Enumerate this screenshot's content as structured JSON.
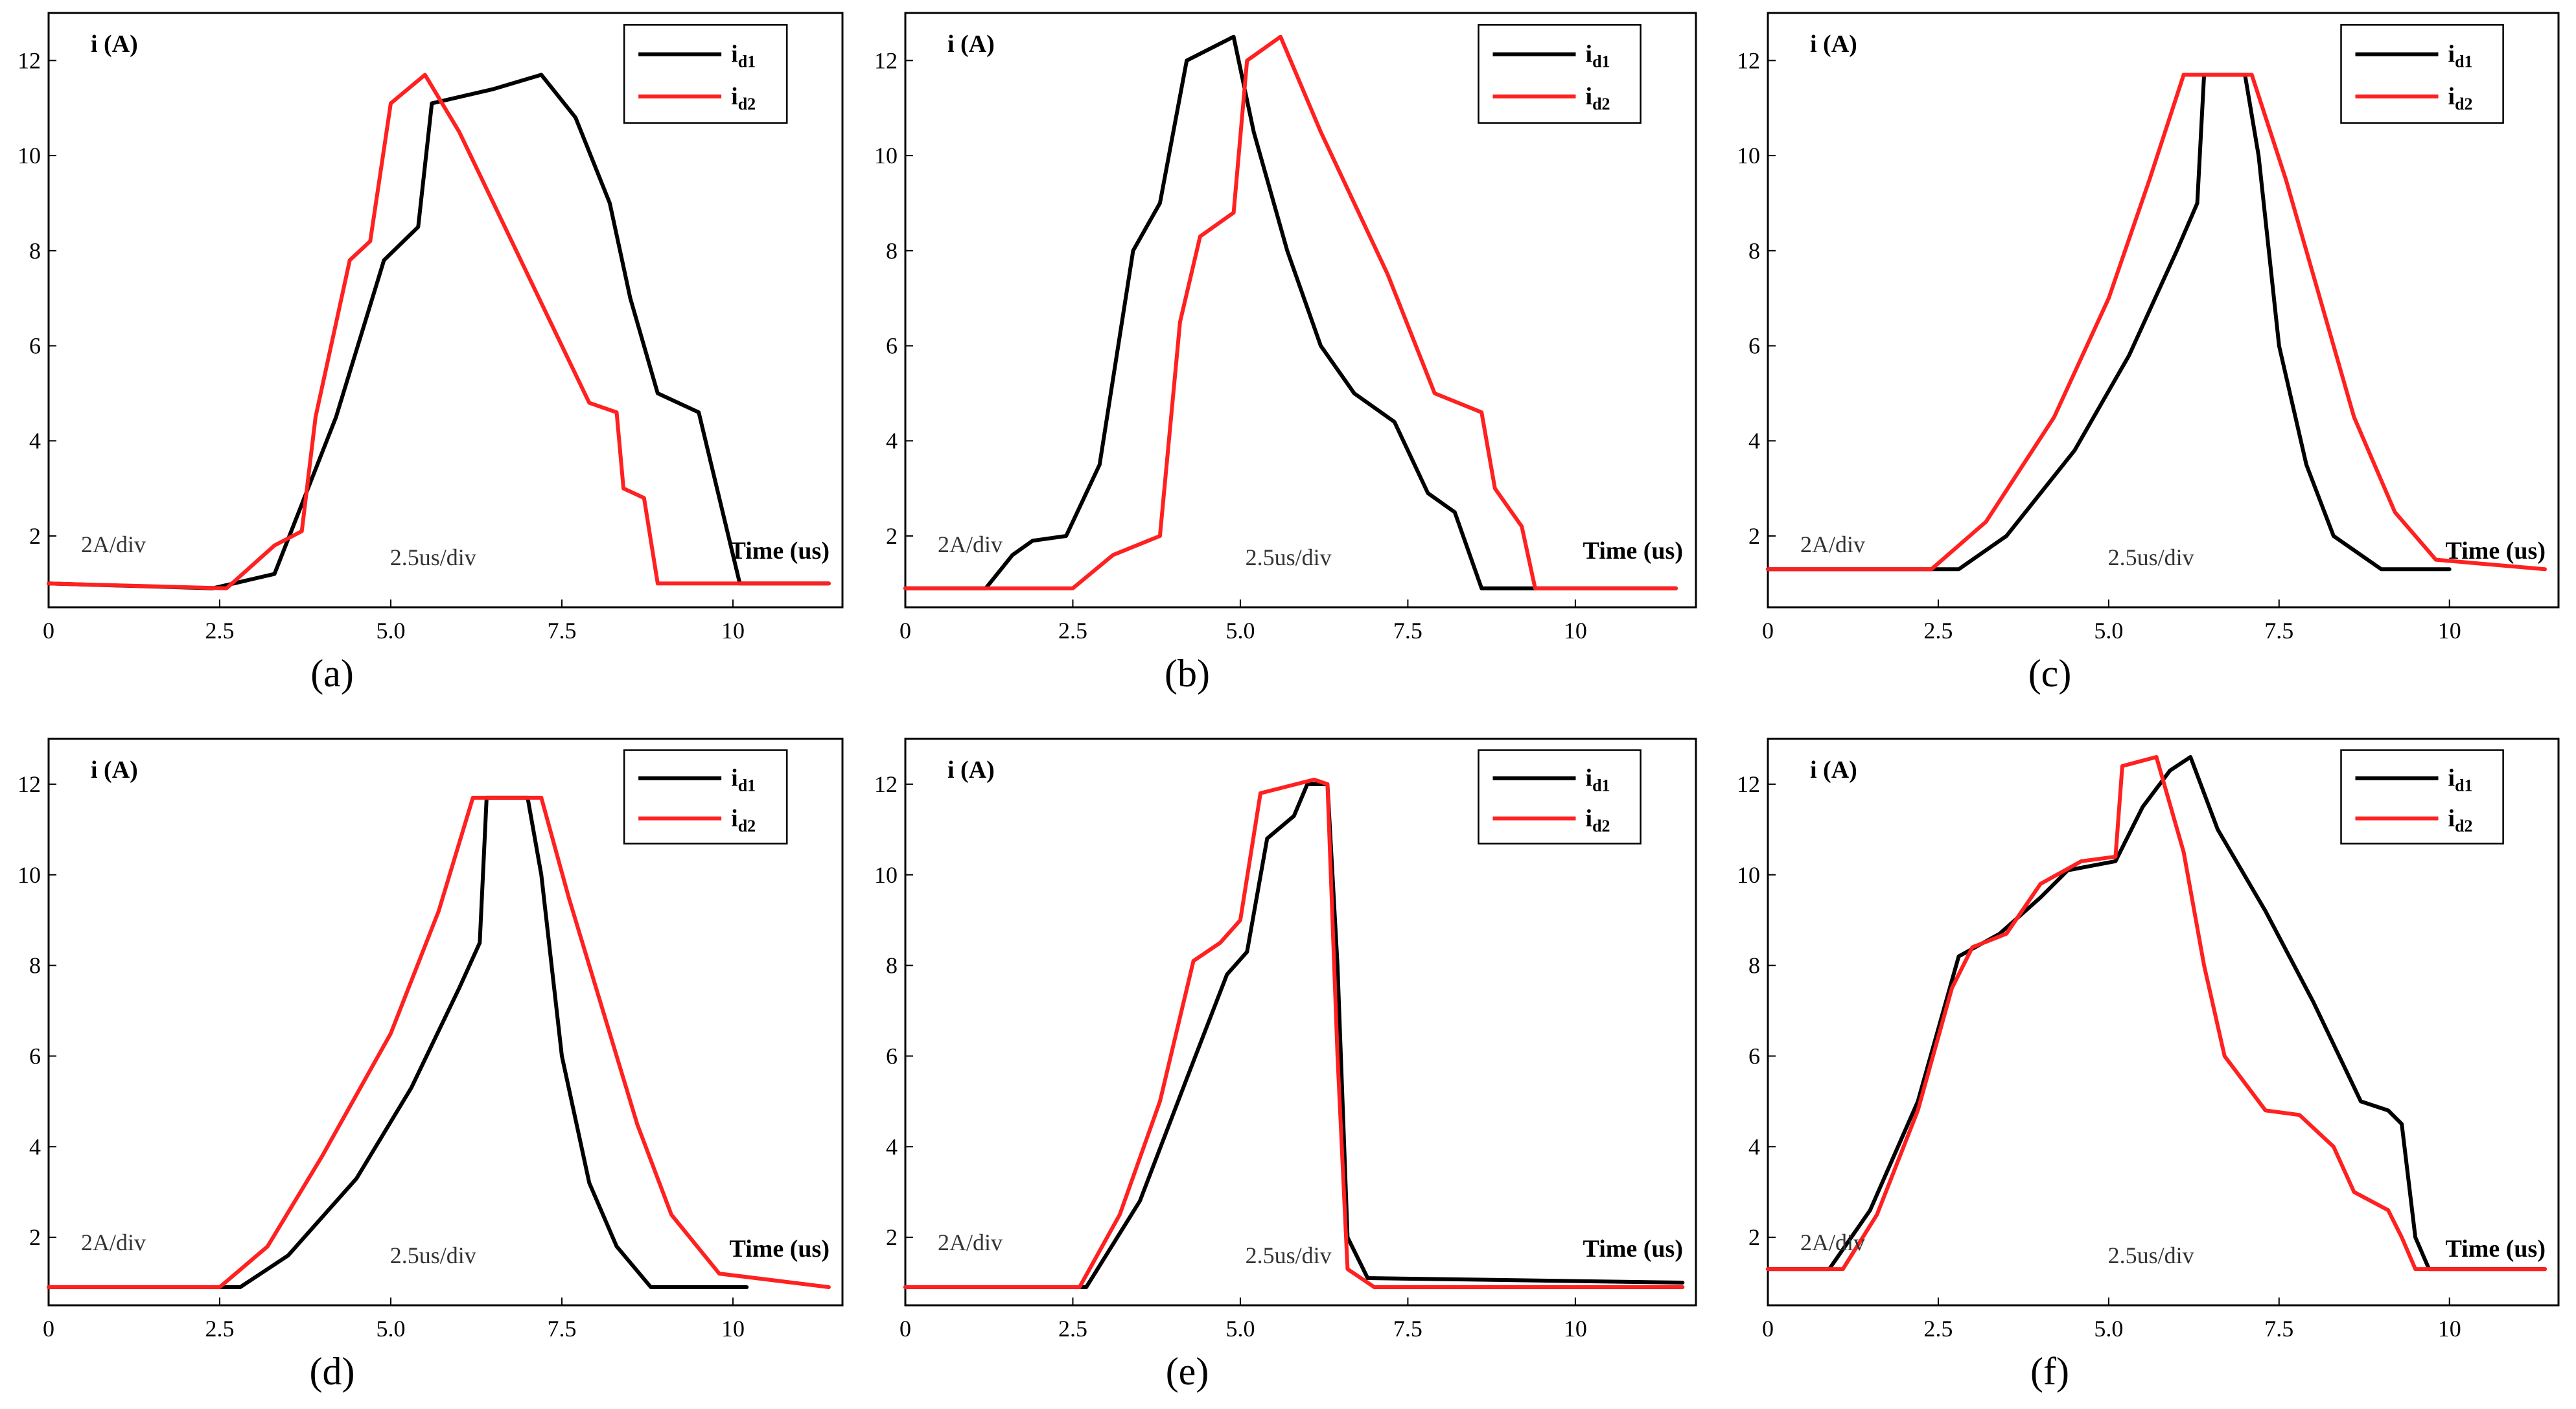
{
  "colors": {
    "id1": "#000000",
    "id2": "#ff2020"
  },
  "chart_data": [
    {
      "type": "line",
      "panel_label": "(a)",
      "ylabel": "i (A)",
      "xlabel": "Time (us)",
      "scale_y": "2A/div",
      "scale_x": "2.5us/div",
      "xlim": [
        0,
        11.6
      ],
      "ylim": [
        0.5,
        13
      ],
      "xticks": [
        0,
        2.5,
        5.0,
        7.5,
        10
      ],
      "xtick_labels": [
        "0",
        "2.5",
        "5.0",
        "7.5",
        "10"
      ],
      "yticks": [
        2,
        4,
        6,
        8,
        10,
        12
      ],
      "ytick_labels": [
        "2",
        "4",
        "6",
        "8",
        "10",
        "12"
      ],
      "series": [
        {
          "name": "id1",
          "points": [
            [
              0,
              1
            ],
            [
              2.4,
              0.9
            ],
            [
              3.3,
              1.2
            ],
            [
              4.2,
              4.5
            ],
            [
              4.9,
              7.8
            ],
            [
              5.4,
              8.5
            ],
            [
              5.6,
              11.1
            ],
            [
              6.5,
              11.4
            ],
            [
              7.2,
              11.7
            ],
            [
              7.7,
              10.8
            ],
            [
              8.2,
              9
            ],
            [
              8.5,
              7
            ],
            [
              8.9,
              5
            ],
            [
              9.5,
              4.6
            ],
            [
              10.1,
              1
            ],
            [
              11.4,
              1
            ]
          ]
        },
        {
          "name": "id2",
          "points": [
            [
              0,
              1
            ],
            [
              2.6,
              0.9
            ],
            [
              3.3,
              1.8
            ],
            [
              3.7,
              2.1
            ],
            [
              3.9,
              4.5
            ],
            [
              4.4,
              7.8
            ],
            [
              4.7,
              8.2
            ],
            [
              5.0,
              11.1
            ],
            [
              5.5,
              11.7
            ],
            [
              6.0,
              10.5
            ],
            [
              7.0,
              7.5
            ],
            [
              7.9,
              4.8
            ],
            [
              8.3,
              4.6
            ],
            [
              8.4,
              3
            ],
            [
              8.7,
              2.8
            ],
            [
              8.9,
              1
            ],
            [
              11.4,
              1
            ]
          ]
        }
      ]
    },
    {
      "type": "line",
      "panel_label": "(b)",
      "ylabel": "i (A)",
      "xlabel": "Time (us)",
      "scale_y": "2A/div",
      "scale_x": "2.5us/div",
      "xlim": [
        0,
        11.8
      ],
      "ylim": [
        0.5,
        13
      ],
      "xticks": [
        0,
        2.5,
        5.0,
        7.5,
        10
      ],
      "xtick_labels": [
        "0",
        "2.5",
        "5.0",
        "7.5",
        "10"
      ],
      "yticks": [
        2,
        4,
        6,
        8,
        10,
        12
      ],
      "ytick_labels": [
        "2",
        "4",
        "6",
        "8",
        "10",
        "12"
      ],
      "series": [
        {
          "name": "id1",
          "points": [
            [
              0,
              0.9
            ],
            [
              1.2,
              0.9
            ],
            [
              1.6,
              1.6
            ],
            [
              1.9,
              1.9
            ],
            [
              2.4,
              2.0
            ],
            [
              2.9,
              3.5
            ],
            [
              3.4,
              8.0
            ],
            [
              3.8,
              9.0
            ],
            [
              4.2,
              12.0
            ],
            [
              4.9,
              12.5
            ],
            [
              5.2,
              10.5
            ],
            [
              5.7,
              8.0
            ],
            [
              6.2,
              6.0
            ],
            [
              6.7,
              5.0
            ],
            [
              7.3,
              4.4
            ],
            [
              7.8,
              2.9
            ],
            [
              8.2,
              2.5
            ],
            [
              8.6,
              0.9
            ],
            [
              11.5,
              0.9
            ]
          ]
        },
        {
          "name": "id2",
          "points": [
            [
              0,
              0.9
            ],
            [
              2.5,
              0.9
            ],
            [
              3.1,
              1.6
            ],
            [
              3.8,
              2.0
            ],
            [
              4.1,
              6.5
            ],
            [
              4.4,
              8.3
            ],
            [
              4.9,
              8.8
            ],
            [
              5.1,
              12.0
            ],
            [
              5.6,
              12.5
            ],
            [
              6.2,
              10.5
            ],
            [
              7.2,
              7.5
            ],
            [
              7.9,
              5.0
            ],
            [
              8.6,
              4.6
            ],
            [
              8.8,
              3.0
            ],
            [
              9.2,
              2.2
            ],
            [
              9.4,
              0.9
            ],
            [
              11.5,
              0.9
            ]
          ]
        }
      ]
    },
    {
      "type": "line",
      "panel_label": "(c)",
      "ylabel": "i (A)",
      "xlabel": "Time (us)",
      "scale_y": "2A/div",
      "scale_x": "2.5us/div",
      "xlim": [
        0,
        11.6
      ],
      "ylim": [
        0.5,
        13
      ],
      "xticks": [
        0,
        2.5,
        5.0,
        7.5,
        10
      ],
      "xtick_labels": [
        "0",
        "2.5",
        "5.0",
        "7.5",
        "10"
      ],
      "yticks": [
        2,
        4,
        6,
        8,
        10,
        12
      ],
      "ytick_labels": [
        "2",
        "4",
        "6",
        "8",
        "10",
        "12"
      ],
      "series": [
        {
          "name": "id1",
          "points": [
            [
              0,
              1.3
            ],
            [
              2.8,
              1.3
            ],
            [
              3.5,
              2.0
            ],
            [
              4.5,
              3.8
            ],
            [
              5.3,
              5.8
            ],
            [
              6.0,
              8.0
            ],
            [
              6.3,
              9.0
            ],
            [
              6.4,
              11.7
            ],
            [
              7.0,
              11.7
            ],
            [
              7.2,
              10.0
            ],
            [
              7.5,
              6.0
            ],
            [
              7.9,
              3.5
            ],
            [
              8.3,
              2.0
            ],
            [
              9.0,
              1.3
            ],
            [
              10.0,
              1.3
            ]
          ]
        },
        {
          "name": "id2",
          "points": [
            [
              0,
              1.3
            ],
            [
              2.4,
              1.3
            ],
            [
              3.2,
              2.3
            ],
            [
              4.2,
              4.5
            ],
            [
              5.0,
              7.0
            ],
            [
              5.6,
              9.5
            ],
            [
              6.1,
              11.7
            ],
            [
              7.1,
              11.7
            ],
            [
              7.6,
              9.5
            ],
            [
              8.1,
              7.0
            ],
            [
              8.6,
              4.5
            ],
            [
              9.2,
              2.5
            ],
            [
              9.8,
              1.5
            ],
            [
              11.4,
              1.3
            ]
          ]
        }
      ]
    },
    {
      "type": "line",
      "panel_label": "(d)",
      "ylabel": "i (A)",
      "xlabel": "Time (us)",
      "scale_y": "2A/div",
      "scale_x": "2.5us/div",
      "xlim": [
        0,
        11.6
      ],
      "ylim": [
        0.5,
        13
      ],
      "xticks": [
        0,
        2.5,
        5.0,
        7.5,
        10
      ],
      "xtick_labels": [
        "0",
        "2.5",
        "5.0",
        "7.5",
        "10"
      ],
      "yticks": [
        2,
        4,
        6,
        8,
        10,
        12
      ],
      "ytick_labels": [
        "2",
        "4",
        "6",
        "8",
        "10",
        "12"
      ],
      "series": [
        {
          "name": "id1",
          "points": [
            [
              0,
              0.9
            ],
            [
              2.8,
              0.9
            ],
            [
              3.5,
              1.6
            ],
            [
              4.5,
              3.3
            ],
            [
              5.3,
              5.3
            ],
            [
              6.0,
              7.5
            ],
            [
              6.3,
              8.5
            ],
            [
              6.4,
              11.7
            ],
            [
              7.0,
              11.7
            ],
            [
              7.2,
              10.0
            ],
            [
              7.5,
              6.0
            ],
            [
              7.9,
              3.2
            ],
            [
              8.3,
              1.8
            ],
            [
              8.8,
              0.9
            ],
            [
              10.2,
              0.9
            ]
          ]
        },
        {
          "name": "id2",
          "points": [
            [
              0,
              0.9
            ],
            [
              2.5,
              0.9
            ],
            [
              3.2,
              1.8
            ],
            [
              4.0,
              3.8
            ],
            [
              5.0,
              6.5
            ],
            [
              5.7,
              9.2
            ],
            [
              6.2,
              11.7
            ],
            [
              7.2,
              11.7
            ],
            [
              7.6,
              9.5
            ],
            [
              8.1,
              7.0
            ],
            [
              8.6,
              4.5
            ],
            [
              9.1,
              2.5
            ],
            [
              9.8,
              1.2
            ],
            [
              11.4,
              0.9
            ]
          ]
        }
      ]
    },
    {
      "type": "line",
      "panel_label": "(e)",
      "ylabel": "i (A)",
      "xlabel": "Time (us)",
      "scale_y": "2A/div",
      "scale_x": "2.5us/div",
      "xlim": [
        0,
        11.8
      ],
      "ylim": [
        0.5,
        13
      ],
      "xticks": [
        0,
        2.5,
        5.0,
        7.5,
        10
      ],
      "xtick_labels": [
        "0",
        "2.5",
        "5.0",
        "7.5",
        "10"
      ],
      "yticks": [
        2,
        4,
        6,
        8,
        10,
        12
      ],
      "ytick_labels": [
        "2",
        "4",
        "6",
        "8",
        "10",
        "12"
      ],
      "series": [
        {
          "name": "id1",
          "points": [
            [
              0,
              0.9
            ],
            [
              2.7,
              0.9
            ],
            [
              3.5,
              2.8
            ],
            [
              4.2,
              5.5
            ],
            [
              4.8,
              7.8
            ],
            [
              5.1,
              8.3
            ],
            [
              5.4,
              10.8
            ],
            [
              5.8,
              11.3
            ],
            [
              6.0,
              12.0
            ],
            [
              6.3,
              12.0
            ],
            [
              6.45,
              8.0
            ],
            [
              6.6,
              2.0
            ],
            [
              6.9,
              1.1
            ],
            [
              11.6,
              1.0
            ]
          ]
        },
        {
          "name": "id2",
          "points": [
            [
              0,
              0.9
            ],
            [
              2.6,
              0.9
            ],
            [
              3.2,
              2.5
            ],
            [
              3.8,
              5.0
            ],
            [
              4.3,
              8.1
            ],
            [
              4.7,
              8.5
            ],
            [
              5.0,
              9.0
            ],
            [
              5.3,
              11.8
            ],
            [
              6.1,
              12.1
            ],
            [
              6.3,
              12.0
            ],
            [
              6.45,
              6.0
            ],
            [
              6.6,
              1.3
            ],
            [
              7.0,
              0.9
            ],
            [
              11.6,
              0.9
            ]
          ]
        }
      ]
    },
    {
      "type": "line",
      "panel_label": "(f)",
      "ylabel": "i (A)",
      "xlabel": "Time (us)",
      "scale_y": "2A/div",
      "scale_x": "2.5us/div",
      "xlim": [
        0,
        11.6
      ],
      "ylim": [
        0.5,
        13
      ],
      "xticks": [
        0,
        2.5,
        5.0,
        7.5,
        10
      ],
      "xtick_labels": [
        "0",
        "2.5",
        "5.0",
        "7.5",
        "10"
      ],
      "yticks": [
        2,
        4,
        6,
        8,
        10,
        12
      ],
      "ytick_labels": [
        "2",
        "4",
        "6",
        "8",
        "10",
        "12"
      ],
      "series": [
        {
          "name": "id1",
          "points": [
            [
              0,
              1.3
            ],
            [
              0.9,
              1.3
            ],
            [
              1.5,
              2.6
            ],
            [
              2.2,
              5.0
            ],
            [
              2.8,
              8.2
            ],
            [
              3.4,
              8.7
            ],
            [
              4.0,
              9.5
            ],
            [
              4.4,
              10.1
            ],
            [
              5.1,
              10.3
            ],
            [
              5.5,
              11.5
            ],
            [
              5.9,
              12.3
            ],
            [
              6.2,
              12.6
            ],
            [
              6.6,
              11.0
            ],
            [
              7.3,
              9.2
            ],
            [
              8.0,
              7.2
            ],
            [
              8.7,
              5.0
            ],
            [
              9.1,
              4.8
            ],
            [
              9.3,
              4.5
            ],
            [
              9.5,
              2.0
            ],
            [
              9.7,
              1.3
            ],
            [
              11.4,
              1.3
            ]
          ]
        },
        {
          "name": "id2",
          "points": [
            [
              0,
              1.3
            ],
            [
              1.1,
              1.3
            ],
            [
              1.6,
              2.5
            ],
            [
              2.2,
              4.8
            ],
            [
              2.7,
              7.5
            ],
            [
              3.0,
              8.4
            ],
            [
              3.5,
              8.7
            ],
            [
              4.0,
              9.8
            ],
            [
              4.6,
              10.3
            ],
            [
              5.1,
              10.4
            ],
            [
              5.2,
              12.4
            ],
            [
              5.7,
              12.6
            ],
            [
              6.1,
              10.5
            ],
            [
              6.4,
              8.0
            ],
            [
              6.7,
              6.0
            ],
            [
              7.3,
              4.8
            ],
            [
              7.8,
              4.7
            ],
            [
              8.3,
              4.0
            ],
            [
              8.6,
              3.0
            ],
            [
              9.1,
              2.6
            ],
            [
              9.3,
              2.0
            ],
            [
              9.5,
              1.3
            ],
            [
              11.4,
              1.3
            ]
          ]
        }
      ]
    }
  ]
}
